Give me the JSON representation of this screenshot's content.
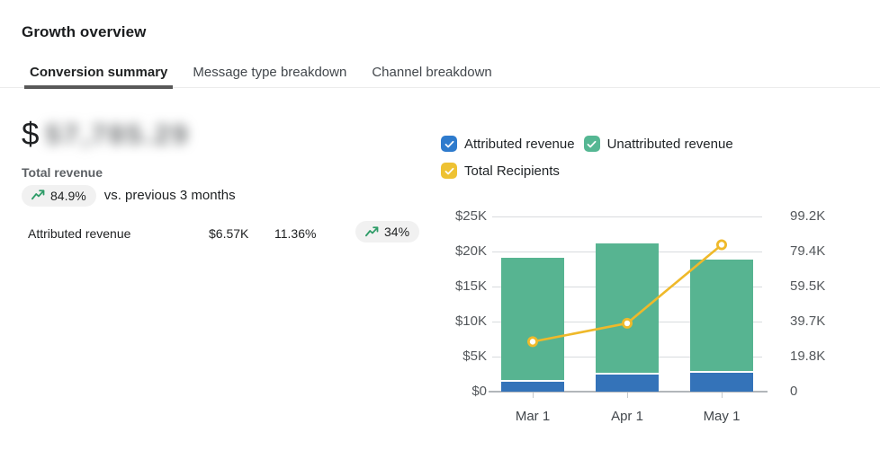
{
  "page": {
    "title": "Growth overview"
  },
  "tabs": [
    {
      "label": "Conversion summary",
      "active": true
    },
    {
      "label": "Message type breakdown",
      "active": false
    },
    {
      "label": "Channel breakdown",
      "active": false
    }
  ],
  "summary": {
    "currency_symbol": "$",
    "total_revenue_value": "57,785.29",
    "total_revenue_label": "Total revenue",
    "change_value": "84.9%",
    "comparison_text": "vs. previous 3 months"
  },
  "attributed_row": {
    "label": "Attributed revenue",
    "value": "$6.57K",
    "percent": "11.36%",
    "change_value": "34%"
  },
  "legend": [
    {
      "label": "Attributed revenue",
      "color": "#2e7bcd"
    },
    {
      "label": "Unattributed revenue",
      "color": "#55b793"
    },
    {
      "label": "Total Recipients",
      "color": "#eec233"
    }
  ],
  "colors": {
    "attributed_bar": "#3473b9",
    "unattributed_bar": "#57b491",
    "recipients_line": "#efb92a",
    "positive_change": "#2e9c68",
    "checkmark": "#ffffff"
  },
  "chart_data": {
    "type": "bar",
    "subtype": "stacked-bars-with-line",
    "categories": [
      "Mar 1",
      "Apr 1",
      "May 1"
    ],
    "series": [
      {
        "name": "Attributed revenue",
        "kind": "bar",
        "axis": "left",
        "color": "#3473b9",
        "values": [
          1350,
          2450,
          2650
        ]
      },
      {
        "name": "Unattributed revenue",
        "kind": "bar",
        "axis": "left",
        "color": "#57b491",
        "values": [
          17450,
          18450,
          15950
        ]
      },
      {
        "name": "Total Recipients",
        "kind": "line",
        "axis": "right",
        "color": "#efb92a",
        "values": [
          28300,
          38700,
          83200
        ]
      }
    ],
    "left_axis": {
      "ticks": [
        "$0",
        "$5K",
        "$10K",
        "$15K",
        "$20K",
        "$25K"
      ],
      "min": 0,
      "max": 25000
    },
    "right_axis": {
      "ticks": [
        "0",
        "19.8K",
        "39.7K",
        "59.5K",
        "79.4K",
        "99.2K"
      ],
      "min": 0,
      "max": 99200
    },
    "grid": true,
    "legend_position": "top"
  }
}
